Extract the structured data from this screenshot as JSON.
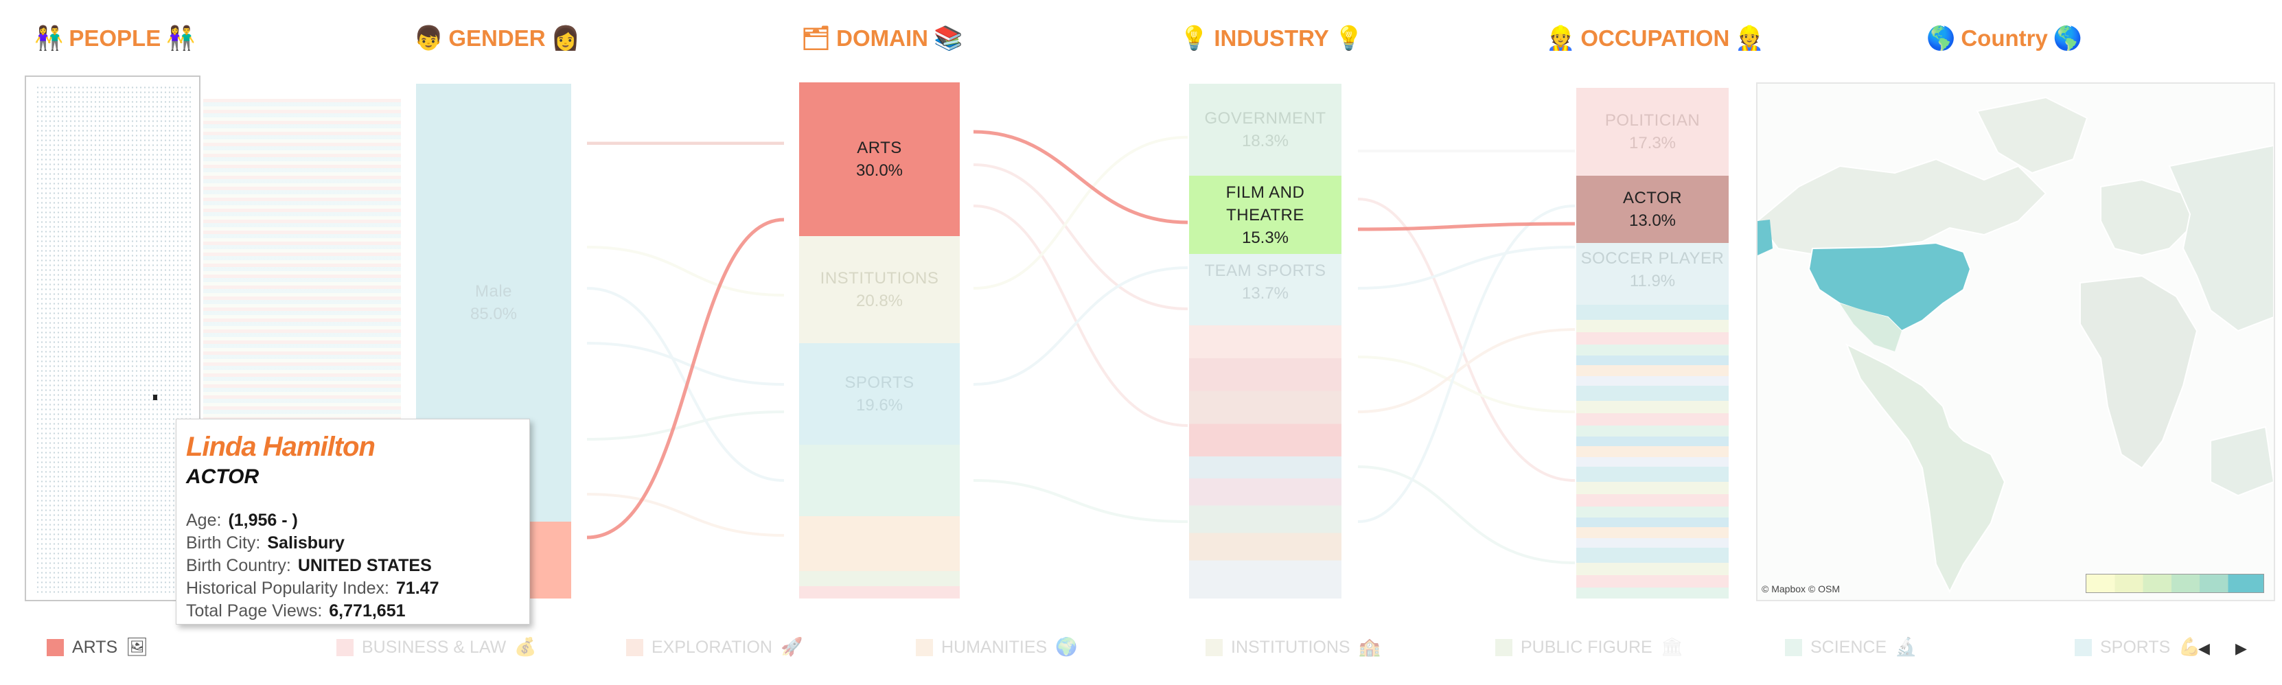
{
  "titles": {
    "people": "PEOPLE",
    "people_icon": "👫",
    "gender": "GENDER",
    "gender_icon_l": "👦",
    "gender_icon_r": "👩",
    "domain": "DOMAIN",
    "domain_icon_l": "🗂",
    "domain_icon_r": "📚",
    "industry": "INDUSTRY",
    "industry_icon": "💡",
    "occupation": "OCCUPATION",
    "occupation_icon": "👷",
    "country": "Country",
    "country_icon": "🌎"
  },
  "gender": {
    "male_label": "Male",
    "male_pct": "85.0%"
  },
  "domain": [
    {
      "label": "ARTS",
      "pct": "30.0%"
    },
    {
      "label": "INSTITUTIONS",
      "pct": "20.8%"
    },
    {
      "label": "SPORTS",
      "pct": "19.6%"
    }
  ],
  "industry": [
    {
      "label": "GOVERNMENT",
      "pct": "18.3%"
    },
    {
      "label": "FILM AND THEATRE",
      "pct": "15.3%"
    },
    {
      "label": "TEAM SPORTS",
      "pct": "13.7%"
    }
  ],
  "occupation": [
    {
      "label": "POLITICIAN",
      "pct": "17.3%"
    },
    {
      "label": "ACTOR",
      "pct": "13.0%"
    },
    {
      "label": "SOCCER PLAYER",
      "pct": "11.9%"
    }
  ],
  "map": {
    "attribution": "© Mapbox © OSM"
  },
  "tooltip": {
    "name": "Linda Hamilton",
    "occupation": "ACTOR",
    "age_label": "Age:",
    "age_value": "(1,956 - )",
    "city_label": "Birth City:",
    "city_value": "Salisbury",
    "country_label": "Birth Country:",
    "country_value": "UNITED STATES",
    "hpi_label": "Historical Popularity Index:",
    "hpi_value": "71.47",
    "views_label": "Total Page Views:",
    "views_value": "6,771,651"
  },
  "legend": [
    {
      "label": "ARTS",
      "icon": "🖼",
      "color": "#f28b82",
      "active": true
    },
    {
      "label": "BUSINESS & LAW",
      "icon": "💰",
      "color": "#fbe3e3",
      "active": false
    },
    {
      "label": "EXPLORATION",
      "icon": "🚀",
      "color": "#fbe9e1",
      "active": false
    },
    {
      "label": "HUMANITIES",
      "icon": "🌍",
      "color": "#fbefe3",
      "active": false
    },
    {
      "label": "INSTITUTIONS",
      "icon": "🏫",
      "color": "#f4f4e8",
      "active": false
    },
    {
      "label": "PUBLIC FIGURE",
      "icon": "🏛",
      "color": "#eef4e8",
      "active": false
    },
    {
      "label": "SCIENCE",
      "icon": "🔬",
      "color": "#e6f4ee",
      "active": false
    },
    {
      "label": "SPORTS",
      "icon": "💪",
      "color": "#e2f2f4",
      "active": false
    }
  ],
  "legend_nav": {
    "prev": "◀",
    "next": "▶"
  },
  "colors": {
    "title": "#f08a3c",
    "arts": "#f28b82",
    "film": "#c8f7a8",
    "actor": "#cfa09b",
    "usa": "#6cc6cf"
  }
}
